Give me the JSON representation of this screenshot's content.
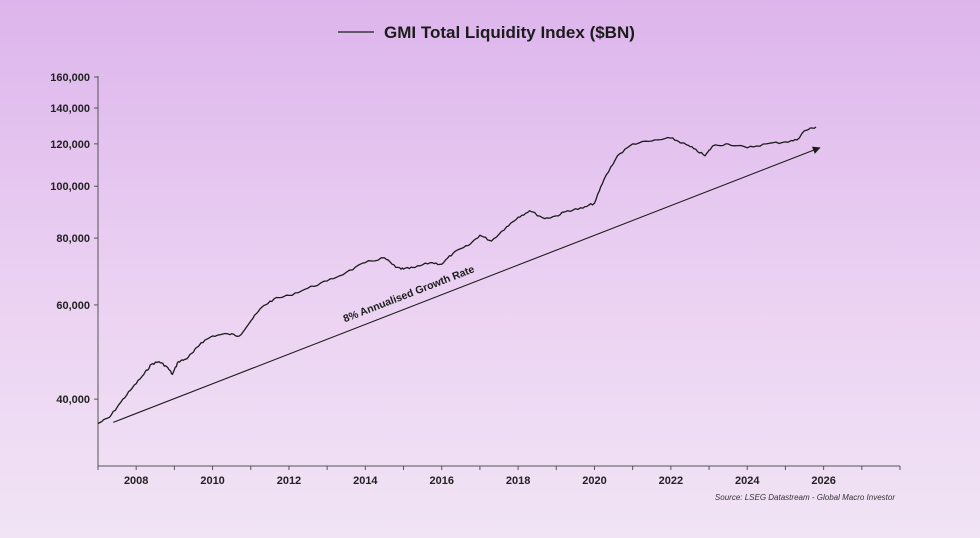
{
  "chart_data": {
    "type": "line",
    "title": "GMI Total Liquidity Index ($BN)",
    "legend": [
      {
        "name": "GMI Total Liquidity Index ($BN)",
        "position": "top-center"
      }
    ],
    "xlabel": "",
    "ylabel": "",
    "y_scale": "log",
    "xlim": [
      2007.0,
      2028.0
    ],
    "ylim": [
      30000,
      160000
    ],
    "x_ticks": [
      "2008",
      "2010",
      "2012",
      "2014",
      "2016",
      "2018",
      "2020",
      "2022",
      "2024",
      "2026"
    ],
    "y_ticks": [
      "40,000",
      "60,000",
      "80,000",
      "100,000",
      "120,000",
      "140,000",
      "160,000"
    ],
    "y_tick_values": [
      40000,
      60000,
      80000,
      100000,
      120000,
      140000,
      160000
    ],
    "grid": false,
    "series": [
      {
        "name": "GMI Total Liquidity Index ($BN)",
        "x": [
          2007.0,
          2007.3,
          2007.6,
          2007.9,
          2008.2,
          2008.4,
          2008.6,
          2008.8,
          2008.95,
          2009.1,
          2009.3,
          2009.5,
          2009.7,
          2010.0,
          2010.4,
          2010.7,
          2011.0,
          2011.3,
          2011.6,
          2012.0,
          2012.5,
          2013.0,
          2013.5,
          2014.0,
          2014.5,
          2014.8,
          2015.0,
          2015.3,
          2015.7,
          2016.0,
          2016.3,
          2016.7,
          2017.0,
          2017.3,
          2017.7,
          2018.0,
          2018.3,
          2018.7,
          2019.0,
          2019.3,
          2019.7,
          2020.0,
          2020.25,
          2020.6,
          2021.0,
          2021.5,
          2022.0,
          2022.3,
          2022.6,
          2022.9,
          2023.1,
          2023.5,
          2024.0,
          2024.5,
          2025.0,
          2025.3,
          2025.5,
          2025.8
        ],
        "values": [
          36000,
          37000,
          39500,
          42000,
          44500,
          46500,
          47000,
          46000,
          44500,
          47000,
          47500,
          49000,
          51000,
          52500,
          53000,
          52500,
          56000,
          59500,
          61500,
          62500,
          64500,
          66500,
          69000,
          72000,
          73500,
          70500,
          70000,
          70500,
          72000,
          71500,
          75000,
          77500,
          81000,
          79000,
          84000,
          87500,
          90000,
          87000,
          88000,
          90000,
          91000,
          93000,
          103000,
          114000,
          120000,
          121500,
          123000,
          120500,
          117500,
          114000,
          119000,
          120000,
          118000,
          120000,
          121000,
          122000,
          127000,
          129000
        ]
      }
    ],
    "annotations": [
      {
        "text": "8% Annualised Growth Rate",
        "type": "trend-arrow",
        "from": [
          2007.4,
          36200
        ],
        "to": [
          2025.9,
          118000
        ]
      }
    ],
    "source": "Source: LSEG Datastream - Global Macro Investor"
  }
}
